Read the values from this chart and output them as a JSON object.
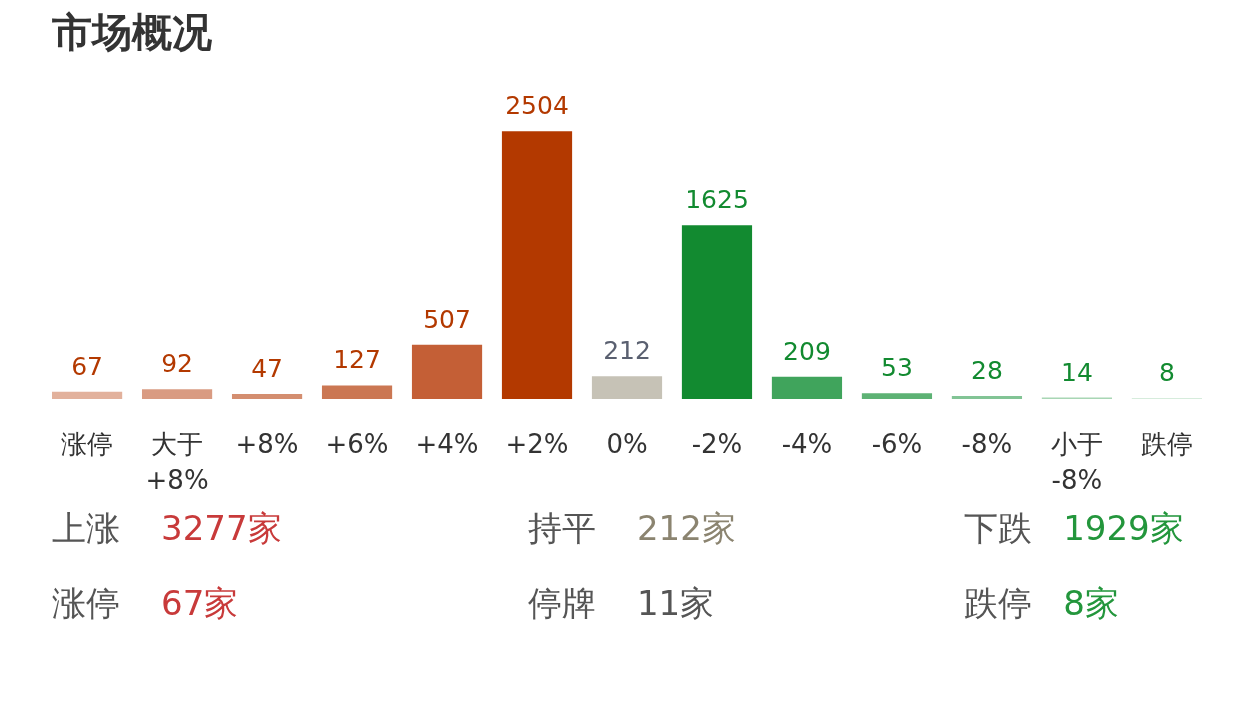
{
  "chart_data": {
    "type": "bar",
    "title": "市场概况",
    "categories": [
      "涨停",
      "大于 +8%",
      "+8%",
      "+6%",
      "+4%",
      "+2%",
      "0%",
      "-2%",
      "-4%",
      "-6%",
      "-8%",
      "小于 -8%",
      "跌停"
    ],
    "values": [
      67,
      92,
      47,
      127,
      507,
      2504,
      212,
      1625,
      209,
      53,
      28,
      14,
      8
    ],
    "colors": [
      "#e2b19c",
      "#d99b82",
      "#d48e70",
      "#cb7753",
      "#c45f36",
      "#b33900",
      "#c6c2b6",
      "#128a30",
      "#40a45c",
      "#5db274",
      "#82c495",
      "#a8d6b4",
      "#c9e6d0"
    ],
    "data_labels": true,
    "grid": false,
    "annotations": [
      "上涨 3277家",
      "持平 212家",
      "下跌 1929家",
      "涨停 67家",
      "停牌 11家",
      "跌停 8家"
    ]
  }
}
